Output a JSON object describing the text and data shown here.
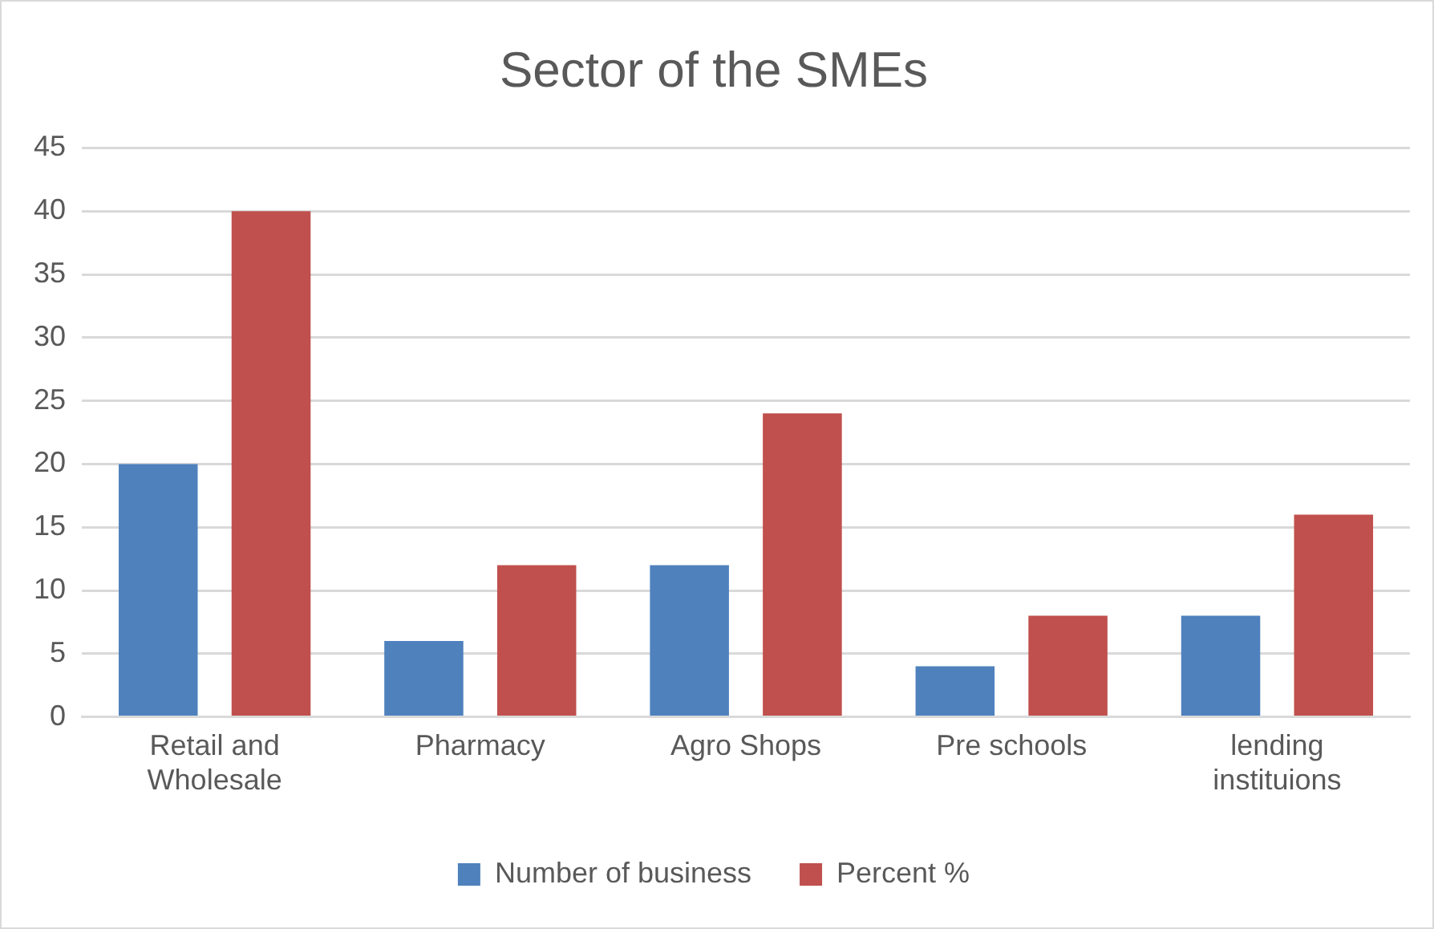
{
  "chart_data": {
    "type": "bar",
    "title": "Sector of the SMEs",
    "categories": [
      "Retail and Wholesale",
      "Pharmacy",
      "Agro Shops",
      "Pre schools",
      "lending instituions"
    ],
    "series": [
      {
        "name": "Number of business",
        "color": "#4f81bd",
        "values": [
          20,
          6,
          12,
          4,
          8
        ]
      },
      {
        "name": "Percent %",
        "color": "#c0504d",
        "values": [
          40,
          12,
          24,
          8,
          16
        ]
      }
    ],
    "ylim": [
      0,
      45
    ],
    "yticks": [
      0,
      5,
      10,
      15,
      20,
      25,
      30,
      35,
      40,
      45
    ],
    "grid": "y",
    "legend": "bottom"
  }
}
